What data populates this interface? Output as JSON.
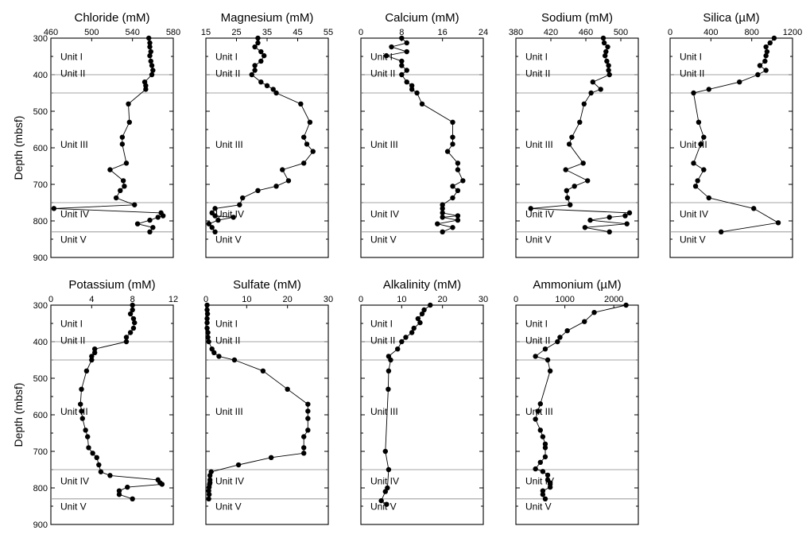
{
  "y_axis_label": "Depth (mbsf)",
  "depth_ticks": [
    300,
    400,
    500,
    600,
    700,
    800,
    900
  ],
  "units": [
    {
      "name": "Unit I"
    },
    {
      "name": "Unit II",
      "top": 400
    },
    {
      "name": "Unit III",
      "top": 450
    },
    {
      "name": "Unit IV",
      "top": 750
    },
    {
      "name": "Unit V",
      "top": 830
    }
  ],
  "chart_data": [
    {
      "type": "line",
      "title": "Chloride (mM)",
      "xlim": [
        460,
        580
      ],
      "ylim": [
        900,
        300
      ],
      "x_ticks": [
        460,
        500,
        540,
        580
      ],
      "y": [
        300,
        313,
        324,
        337,
        348,
        363,
        375,
        388,
        400,
        420,
        430,
        440,
        480,
        530,
        571,
        590,
        642,
        660,
        690,
        705,
        717,
        737,
        756,
        766,
        778,
        786,
        790,
        798,
        808,
        818,
        830
      ],
      "x": [
        556,
        557,
        557,
        558,
        557,
        558,
        559,
        560,
        559,
        552,
        553,
        553,
        536,
        537,
        530,
        530,
        534,
        518,
        531,
        532,
        528,
        524,
        542,
        463,
        568,
        570,
        565,
        557,
        545,
        560,
        557
      ]
    },
    {
      "type": "line",
      "title": "Magnesium (mM)",
      "xlim": [
        15,
        55
      ],
      "ylim": [
        900,
        300
      ],
      "x_ticks": [
        15,
        25,
        35,
        45,
        55
      ],
      "y": [
        300,
        313,
        324,
        337,
        348,
        363,
        375,
        388,
        400,
        420,
        430,
        440,
        450,
        480,
        530,
        571,
        590,
        610,
        642,
        660,
        690,
        705,
        717,
        737,
        756,
        766,
        778,
        786,
        790,
        798,
        808,
        818,
        830
      ],
      "x": [
        32,
        32,
        31,
        33,
        34,
        33,
        31,
        31,
        30,
        33,
        35,
        37,
        38,
        46,
        49,
        47,
        48,
        50,
        47,
        40,
        42,
        38,
        32,
        27,
        26,
        18,
        17,
        18,
        24,
        19,
        16,
        17,
        18
      ]
    },
    {
      "type": "line",
      "title": "Calcium (mM)",
      "xlim": [
        0,
        24
      ],
      "ylim": [
        900,
        300
      ],
      "x_ticks": [
        0,
        8,
        16,
        24
      ],
      "y": [
        300,
        313,
        324,
        337,
        348,
        363,
        375,
        388,
        400,
        420,
        430,
        440,
        450,
        480,
        530,
        571,
        590,
        610,
        642,
        660,
        690,
        705,
        717,
        737,
        756,
        766,
        778,
        786,
        790,
        798,
        808,
        818,
        830
      ],
      "x": [
        8,
        9,
        6,
        9,
        5,
        8,
        8,
        9,
        8,
        9,
        10,
        10,
        11,
        12,
        18,
        18,
        18,
        17,
        19,
        19,
        20,
        18,
        19,
        18,
        16,
        16,
        16,
        19,
        16,
        19,
        15,
        18,
        16
      ]
    },
    {
      "type": "line",
      "title": "Sodium (mM)",
      "xlim": [
        380,
        520
      ],
      "ylim": [
        900,
        300
      ],
      "x_ticks": [
        380,
        420,
        460,
        500
      ],
      "y": [
        300,
        313,
        324,
        337,
        348,
        363,
        375,
        388,
        400,
        420,
        440,
        450,
        480,
        530,
        571,
        590,
        642,
        660,
        690,
        705,
        717,
        737,
        756,
        766,
        778,
        786,
        790,
        798,
        808,
        818,
        830
      ],
      "x": [
        480,
        481,
        485,
        483,
        482,
        484,
        486,
        486,
        487,
        468,
        477,
        466,
        458,
        453,
        444,
        441,
        457,
        437,
        462,
        447,
        438,
        439,
        442,
        397,
        510,
        505,
        487,
        465,
        507,
        459,
        487
      ]
    },
    {
      "type": "line",
      "title": "Silica (µM)",
      "xlim": [
        0,
        1200
      ],
      "ylim": [
        900,
        300
      ],
      "x_ticks": [
        0,
        400,
        800,
        1200
      ],
      "y": [
        300,
        313,
        324,
        337,
        348,
        363,
        375,
        388,
        400,
        420,
        440,
        450,
        530,
        571,
        590,
        642,
        660,
        690,
        705,
        737,
        766,
        805,
        830
      ],
      "x": [
        1020,
        980,
        940,
        950,
        940,
        930,
        880,
        940,
        860,
        680,
        380,
        230,
        280,
        330,
        300,
        230,
        330,
        270,
        250,
        380,
        820,
        1060,
        500
      ]
    },
    {
      "type": "line",
      "title": "Potassium (mM)",
      "xlim": [
        0,
        12
      ],
      "ylim": [
        900,
        300
      ],
      "x_ticks": [
        0,
        4,
        8,
        12
      ],
      "y": [
        300,
        313,
        324,
        337,
        348,
        363,
        375,
        388,
        400,
        420,
        430,
        440,
        450,
        480,
        530,
        571,
        590,
        610,
        642,
        660,
        690,
        705,
        717,
        737,
        756,
        766,
        778,
        786,
        790,
        798,
        808,
        818,
        830
      ],
      "x": [
        8.0,
        8.0,
        7.8,
        8.1,
        8.2,
        8.1,
        7.8,
        7.4,
        7.4,
        4.3,
        4.3,
        4.0,
        4.0,
        3.5,
        3.0,
        2.9,
        3.0,
        3.1,
        3.4,
        3.6,
        3.7,
        4.1,
        4.5,
        4.7,
        4.9,
        5.8,
        10.5,
        10.7,
        10.9,
        7.5,
        6.7,
        6.7,
        8.0
      ]
    },
    {
      "type": "line",
      "title": "Sulfate (mM)",
      "xlim": [
        0,
        30
      ],
      "ylim": [
        900,
        300
      ],
      "x_ticks": [
        0,
        10,
        20,
        30
      ],
      "y": [
        300,
        313,
        324,
        337,
        348,
        363,
        375,
        388,
        400,
        420,
        430,
        440,
        450,
        480,
        530,
        571,
        590,
        610,
        642,
        660,
        690,
        705,
        717,
        737,
        756,
        766,
        778,
        786,
        790,
        798,
        808,
        818,
        830
      ],
      "x": [
        0.3,
        0.3,
        0.4,
        0.3,
        0.3,
        0.3,
        0.5,
        0.5,
        0.7,
        1.5,
        2.0,
        3.2,
        7.0,
        14.0,
        20.0,
        25.0,
        25.0,
        25.0,
        25.0,
        24.0,
        24.0,
        24.0,
        16.0,
        8.0,
        1.3,
        1.0,
        1.0,
        1.0,
        0.9,
        0.8,
        0.7,
        0.8,
        0.7
      ]
    },
    {
      "type": "line",
      "title": "Alkalinity (mM)",
      "xlim": [
        0,
        30
      ],
      "ylim": [
        900,
        300
      ],
      "x_ticks": [
        0,
        10,
        20,
        30
      ],
      "y": [
        300,
        313,
        324,
        337,
        348,
        363,
        375,
        388,
        400,
        420,
        440,
        450,
        480,
        530,
        700,
        750,
        800,
        810,
        835,
        845
      ],
      "x": [
        17.0,
        15.5,
        15.0,
        14.0,
        14.5,
        13.0,
        12.5,
        11.0,
        10.0,
        9.0,
        6.8,
        7.3,
        6.8,
        6.7,
        6.0,
        6.8,
        6.5,
        6.0,
        5.0,
        6.3
      ]
    },
    {
      "type": "line",
      "title": "Ammonium (µM)",
      "xlim": [
        0,
        2500
      ],
      "ylim": [
        900,
        300
      ],
      "x_ticks": [
        0,
        1000,
        2000
      ],
      "y": [
        300,
        320,
        345,
        370,
        388,
        400,
        420,
        440,
        450,
        480,
        570,
        590,
        612,
        642,
        660,
        680,
        690,
        715,
        730,
        748,
        755,
        765,
        778,
        786,
        790,
        798,
        808,
        818,
        830
      ],
      "x": [
        2250,
        1600,
        1400,
        1050,
        900,
        850,
        600,
        400,
        650,
        700,
        500,
        450,
        400,
        500,
        550,
        600,
        600,
        600,
        500,
        400,
        550,
        650,
        650,
        700,
        700,
        700,
        550,
        550,
        600
      ]
    }
  ]
}
